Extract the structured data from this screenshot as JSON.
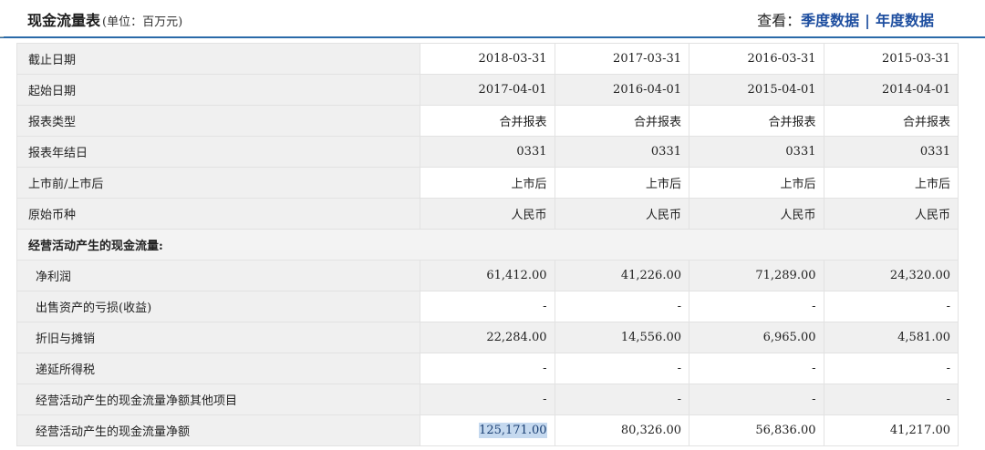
{
  "header": {
    "title": "现金流量表",
    "unit": "(单位：百万元)",
    "view_label": "查看：",
    "quarterly_link": "季度数据",
    "separator": "|",
    "annual_link": "年度数据"
  },
  "rows": [
    {
      "label": "截止日期",
      "values": [
        "2018-03-31",
        "2017-03-31",
        "2016-03-31",
        "2015-03-31"
      ]
    },
    {
      "label": "起始日期",
      "values": [
        "2017-04-01",
        "2016-04-01",
        "2015-04-01",
        "2014-04-01"
      ]
    },
    {
      "label": "报表类型",
      "values": [
        "合并报表",
        "合并报表",
        "合并报表",
        "合并报表"
      ]
    },
    {
      "label": "报表年结日",
      "values": [
        "0331",
        "0331",
        "0331",
        "0331"
      ]
    },
    {
      "label": "上市前/上市后",
      "values": [
        "上市后",
        "上市后",
        "上市后",
        "上市后"
      ]
    },
    {
      "label": "原始币种",
      "values": [
        "人民币",
        "人民币",
        "人民币",
        "人民币"
      ]
    },
    {
      "label": "经营活动产生的现金流量:",
      "values": []
    },
    {
      "label": "净利润",
      "values": [
        "61,412.00",
        "41,226.00",
        "71,289.00",
        "24,320.00"
      ]
    },
    {
      "label": "出售资产的亏损(收益)",
      "values": [
        "-",
        "-",
        "-",
        "-"
      ]
    },
    {
      "label": "折旧与摊销",
      "values": [
        "22,284.00",
        "14,556.00",
        "6,965.00",
        "4,581.00"
      ]
    },
    {
      "label": "递延所得税",
      "values": [
        "-",
        "-",
        "-",
        "-"
      ]
    },
    {
      "label": "经营活动产生的现金流量净额其他项目",
      "values": [
        "-",
        "-",
        "-",
        "-"
      ]
    },
    {
      "label": "经营活动产生的现金流量净额",
      "values": [
        "125,171.00",
        "80,326.00",
        "56,836.00",
        "41,217.00"
      ]
    }
  ]
}
